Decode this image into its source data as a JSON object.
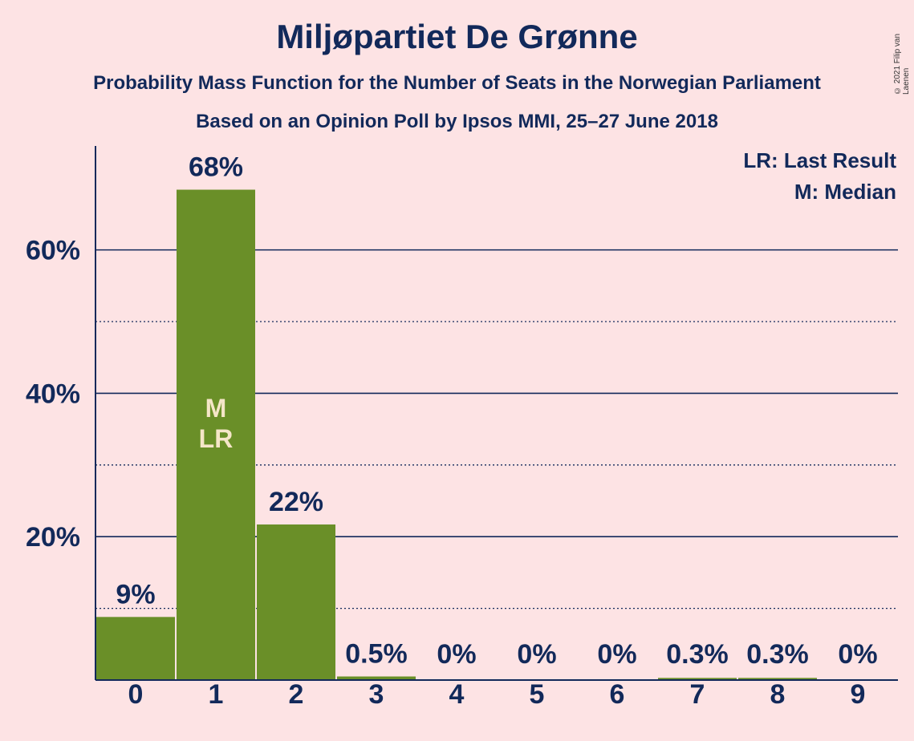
{
  "chart_data": {
    "type": "bar",
    "title": "Miljøpartiet De Grønne",
    "subtitle": "Probability Mass Function for the Number of Seats in the Norwegian Parliament",
    "subtitle2": "Based on an Opinion Poll by Ipsos MMI, 25–27 June 2018",
    "categories": [
      "0",
      "1",
      "2",
      "3",
      "4",
      "5",
      "6",
      "7",
      "8",
      "9"
    ],
    "values": [
      8.8,
      68.4,
      21.7,
      0.5,
      0.05,
      0.05,
      0.05,
      0.3,
      0.3,
      0.0
    ],
    "data_labels": [
      "9%",
      "68%",
      "22%",
      "0.5%",
      "0%",
      "0%",
      "0%",
      "0.3%",
      "0.3%",
      "0%"
    ],
    "y_ticks": [
      {
        "value": 20,
        "label": "20%"
      },
      {
        "value": 40,
        "label": "40%"
      },
      {
        "value": 60,
        "label": "60%"
      }
    ],
    "y_minor_ticks": [
      10,
      30,
      50
    ],
    "ylim": [
      0,
      74.5
    ],
    "median_index": 1,
    "last_result_index": 1,
    "median_marker": "M",
    "last_result_marker": "LR",
    "legend": [
      "LR: Last Result",
      "M: Median"
    ],
    "legend_position": "top-right",
    "bar_color": "#6a8f28",
    "text_color": "#12295a",
    "background": "#fde3e4",
    "grid": true
  },
  "copyright": "© 2021 Filip van Laenen"
}
